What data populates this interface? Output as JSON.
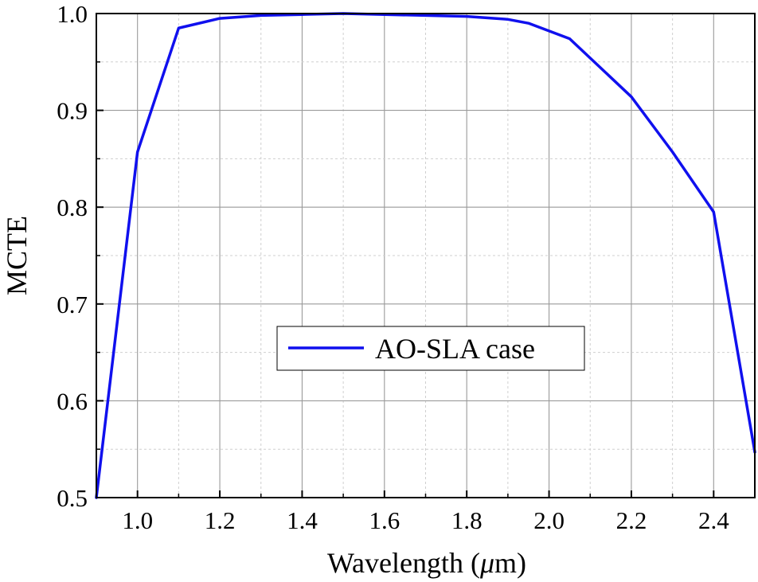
{
  "chart_data": {
    "type": "line",
    "title": "",
    "xlabel": "Wavelength (μm)",
    "xlabel_parts": {
      "before": "Wavelength (",
      "mu": "μ",
      "after": "m)"
    },
    "ylabel": "MCTE",
    "xlim": [
      0.9,
      2.5
    ],
    "ylim": [
      0.5,
      1.0
    ],
    "grid": true,
    "legend_position": "center",
    "x_ticks": [
      "1.0",
      "1.2",
      "1.4",
      "1.6",
      "1.8",
      "2.0",
      "2.2",
      "2.4"
    ],
    "y_ticks": [
      "0.5",
      "0.6",
      "0.7",
      "0.8",
      "0.9",
      "1.0"
    ],
    "series": [
      {
        "name": "AO-SLA case",
        "color": "#1010ee",
        "x": [
          0.9,
          1.0,
          1.1,
          1.2,
          1.3,
          1.4,
          1.5,
          1.6,
          1.7,
          1.8,
          1.9,
          1.95,
          2.05,
          2.2,
          2.3,
          2.4,
          2.5
        ],
        "y": [
          0.5,
          0.857,
          0.985,
          0.995,
          0.998,
          0.999,
          1.0,
          0.999,
          0.998,
          0.997,
          0.994,
          0.99,
          0.974,
          0.914,
          0.857,
          0.795,
          0.547
        ]
      }
    ]
  }
}
